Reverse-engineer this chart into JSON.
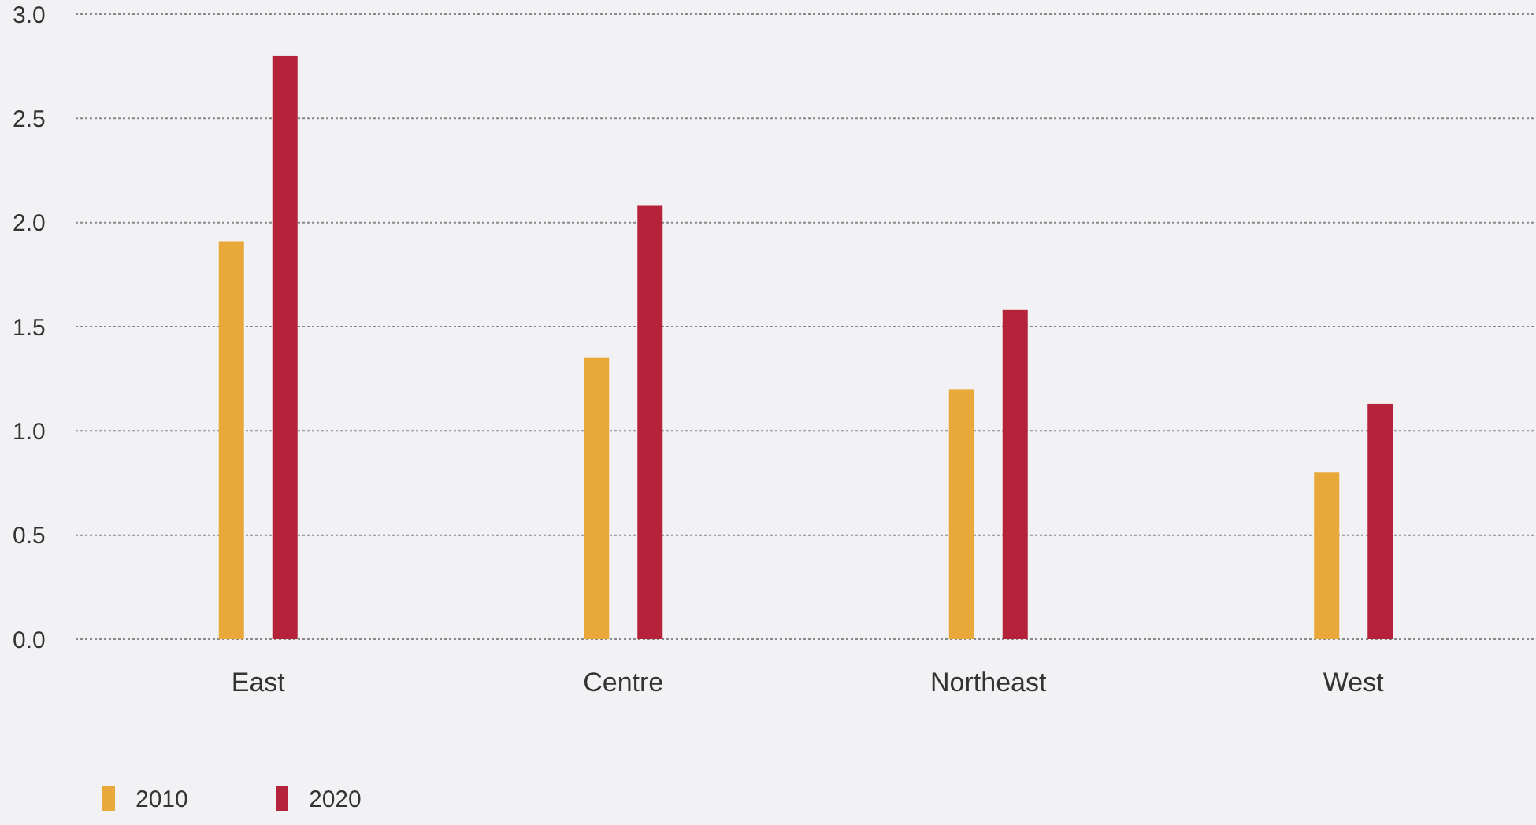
{
  "chart_data": {
    "type": "bar",
    "categories": [
      "East",
      "Centre",
      "Northeast",
      "West"
    ],
    "series": [
      {
        "name": "2010",
        "color": "#e8a83a",
        "values": [
          1.91,
          1.35,
          1.2,
          0.8
        ]
      },
      {
        "name": "2020",
        "color": "#b5233b",
        "values": [
          2.8,
          2.08,
          1.58,
          1.13
        ]
      }
    ],
    "ylim": [
      0,
      3
    ],
    "yticks": [
      {
        "value": 0,
        "label": "0.0"
      },
      {
        "value": 0.5,
        "label": "0.5"
      },
      {
        "value": 1,
        "label": "1.0"
      },
      {
        "value": 1.5,
        "label": "1.5"
      },
      {
        "value": 2,
        "label": "2.0"
      },
      {
        "value": 2.5,
        "label": "2.5"
      },
      {
        "value": 3,
        "label": "3.0"
      }
    ],
    "grid": "y",
    "legend": "bottom left"
  }
}
